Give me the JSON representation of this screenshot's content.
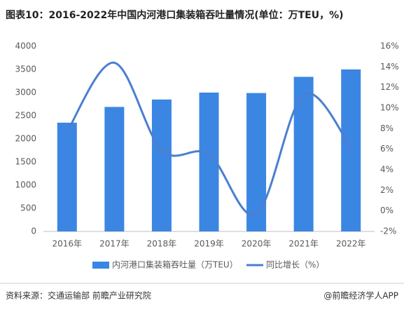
{
  "chart_data": {
    "type": "bar_line",
    "title": "图表10：2016-2022年中国内河港口集装箱吞吐量情况(单位：万TEU，%)",
    "categories": [
      "2016年",
      "2017年",
      "2018年",
      "2019年",
      "2020年",
      "2021年",
      "2022年"
    ],
    "series": [
      {
        "name": "内河港口集装箱吞吐量（万TEU）",
        "color": "#3b86e2",
        "type": "bar",
        "values": [
          2350,
          2690,
          2850,
          3000,
          2990,
          3340,
          3500
        ]
      },
      {
        "name": "同比增长（%）",
        "color": "#4a7fd0",
        "type": "line",
        "axis": "y2",
        "values": [
          7.7,
          14.4,
          5.9,
          5.5,
          -0.3,
          11.3,
          6.2
        ]
      }
    ],
    "ylim": [
      0,
      4000
    ],
    "yticks": [
      0,
      500,
      1000,
      1500,
      2000,
      2500,
      3000,
      3500,
      4000
    ],
    "y2lim": [
      -2,
      16
    ],
    "y2ticks": [
      {
        "value": -2,
        "label": "-2%"
      },
      {
        "value": 0,
        "label": "0%"
      },
      {
        "value": 2,
        "label": "2%"
      },
      {
        "value": 4,
        "label": "4%"
      },
      {
        "value": 6,
        "label": "6%"
      },
      {
        "value": 8,
        "label": "8%"
      },
      {
        "value": 10,
        "label": "10%"
      },
      {
        "value": 12,
        "label": "12%"
      },
      {
        "value": 14,
        "label": "14%"
      },
      {
        "value": 16,
        "label": "16%"
      }
    ],
    "grid": false,
    "source": "资料来源：交通运输部 前瞻产业研究院",
    "credit": "@前瞻经济学人APP"
  }
}
